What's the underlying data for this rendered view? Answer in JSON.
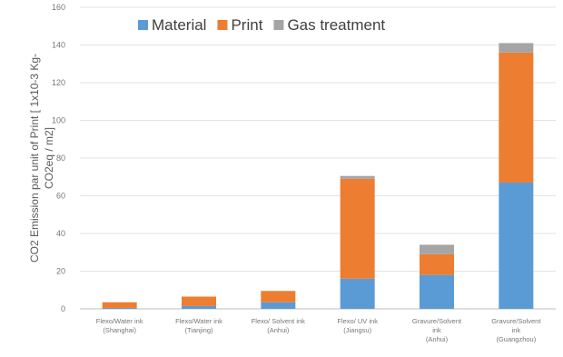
{
  "chart_data": {
    "type": "bar",
    "stacked": true,
    "title": "",
    "xlabel": "",
    "ylabel_lines": [
      "CO2 Emission par unit of Print [ 1x10-3  Kg-",
      "CO2eq / m2]"
    ],
    "ylim": [
      0,
      160
    ],
    "yticks": [
      0,
      20,
      40,
      60,
      80,
      100,
      120,
      140,
      160
    ],
    "grid": true,
    "legend_position": "top",
    "categories": [
      [
        "Flexo/Water ink",
        "(Shanghai)"
      ],
      [
        "Flexo/Water ink",
        "(Tianjing)"
      ],
      [
        "Flexo/ Solvent ink",
        "(Anhui)"
      ],
      [
        "Flexo/ UV ink",
        "(Jiangsu)"
      ],
      [
        "Gravure/Solvent",
        "ink",
        "(Anhui)"
      ],
      [
        "Gravure/Solvent",
        "ink",
        "(Guangzhou)"
      ]
    ],
    "series": [
      {
        "name": "Material",
        "color": "#5b9bd5",
        "values": [
          0.5,
          1.5,
          3.5,
          16,
          18,
          67
        ]
      },
      {
        "name": "Print",
        "color": "#ed7d31",
        "values": [
          3,
          5,
          6,
          53,
          11,
          69
        ]
      },
      {
        "name": "Gas treatment",
        "color": "#a5a5a5",
        "values": [
          0,
          0,
          0,
          1.5,
          5,
          5
        ]
      }
    ]
  }
}
